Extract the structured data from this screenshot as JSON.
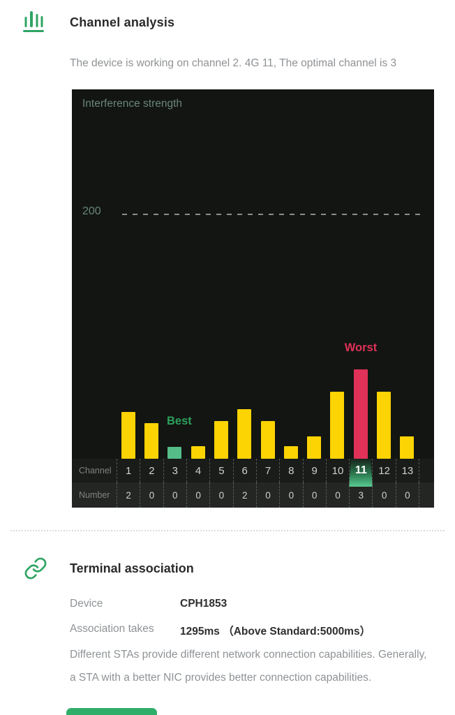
{
  "channel_analysis": {
    "title": "Channel analysis",
    "subtitle": "The device is working on channel 2. 4G 11,  The optimal channel is 3"
  },
  "chart_data": {
    "type": "bar",
    "title": "Interference strength",
    "categories": [
      "1",
      "2",
      "3",
      "4",
      "5",
      "6",
      "7",
      "8",
      "9",
      "10",
      "11",
      "12",
      "13"
    ],
    "series": [
      {
        "name": "Interference strength (relative bar height, px)",
        "values": [
          67,
          51,
          17,
          18,
          54,
          71,
          54,
          18,
          32,
          96,
          128,
          96,
          32
        ]
      },
      {
        "name": "Number",
        "values": [
          2,
          0,
          0,
          0,
          0,
          2,
          0,
          0,
          0,
          0,
          3,
          0,
          0
        ]
      }
    ],
    "reference_line_label": "200",
    "reference_line_value": 200,
    "row_labels": {
      "channel": "Channel",
      "number": "Number"
    },
    "annotations": {
      "best_label": "Best",
      "best_channel": "3",
      "worst_label": "Worst",
      "worst_channel": "11"
    },
    "layout": {
      "legend": "none",
      "grid": "single dashed reference line",
      "background": "#121512"
    },
    "colors": {
      "bar_default": "#fcd303",
      "bar_best": "#55bd88",
      "bar_worst": "#e03158",
      "best_text": "#2ca05c",
      "worst_text": "#e03158",
      "axis_text": "#6a857c",
      "panel_bg": "#121512"
    }
  },
  "terminal_association": {
    "title": "Terminal association",
    "rows": [
      {
        "label": "Device",
        "value": "CPH1853"
      },
      {
        "label": "Association takes",
        "value": "1295ms （Above Standard:5000ms）"
      }
    ],
    "description": "Different STAs provide different network connection capabilities.  Generally,  a STA with a better NIC provides better connection capabilities."
  },
  "icons": {
    "header": "bar-chart-icon",
    "terminal": "chain-link-icon"
  },
  "brand_color": "#2fa463"
}
